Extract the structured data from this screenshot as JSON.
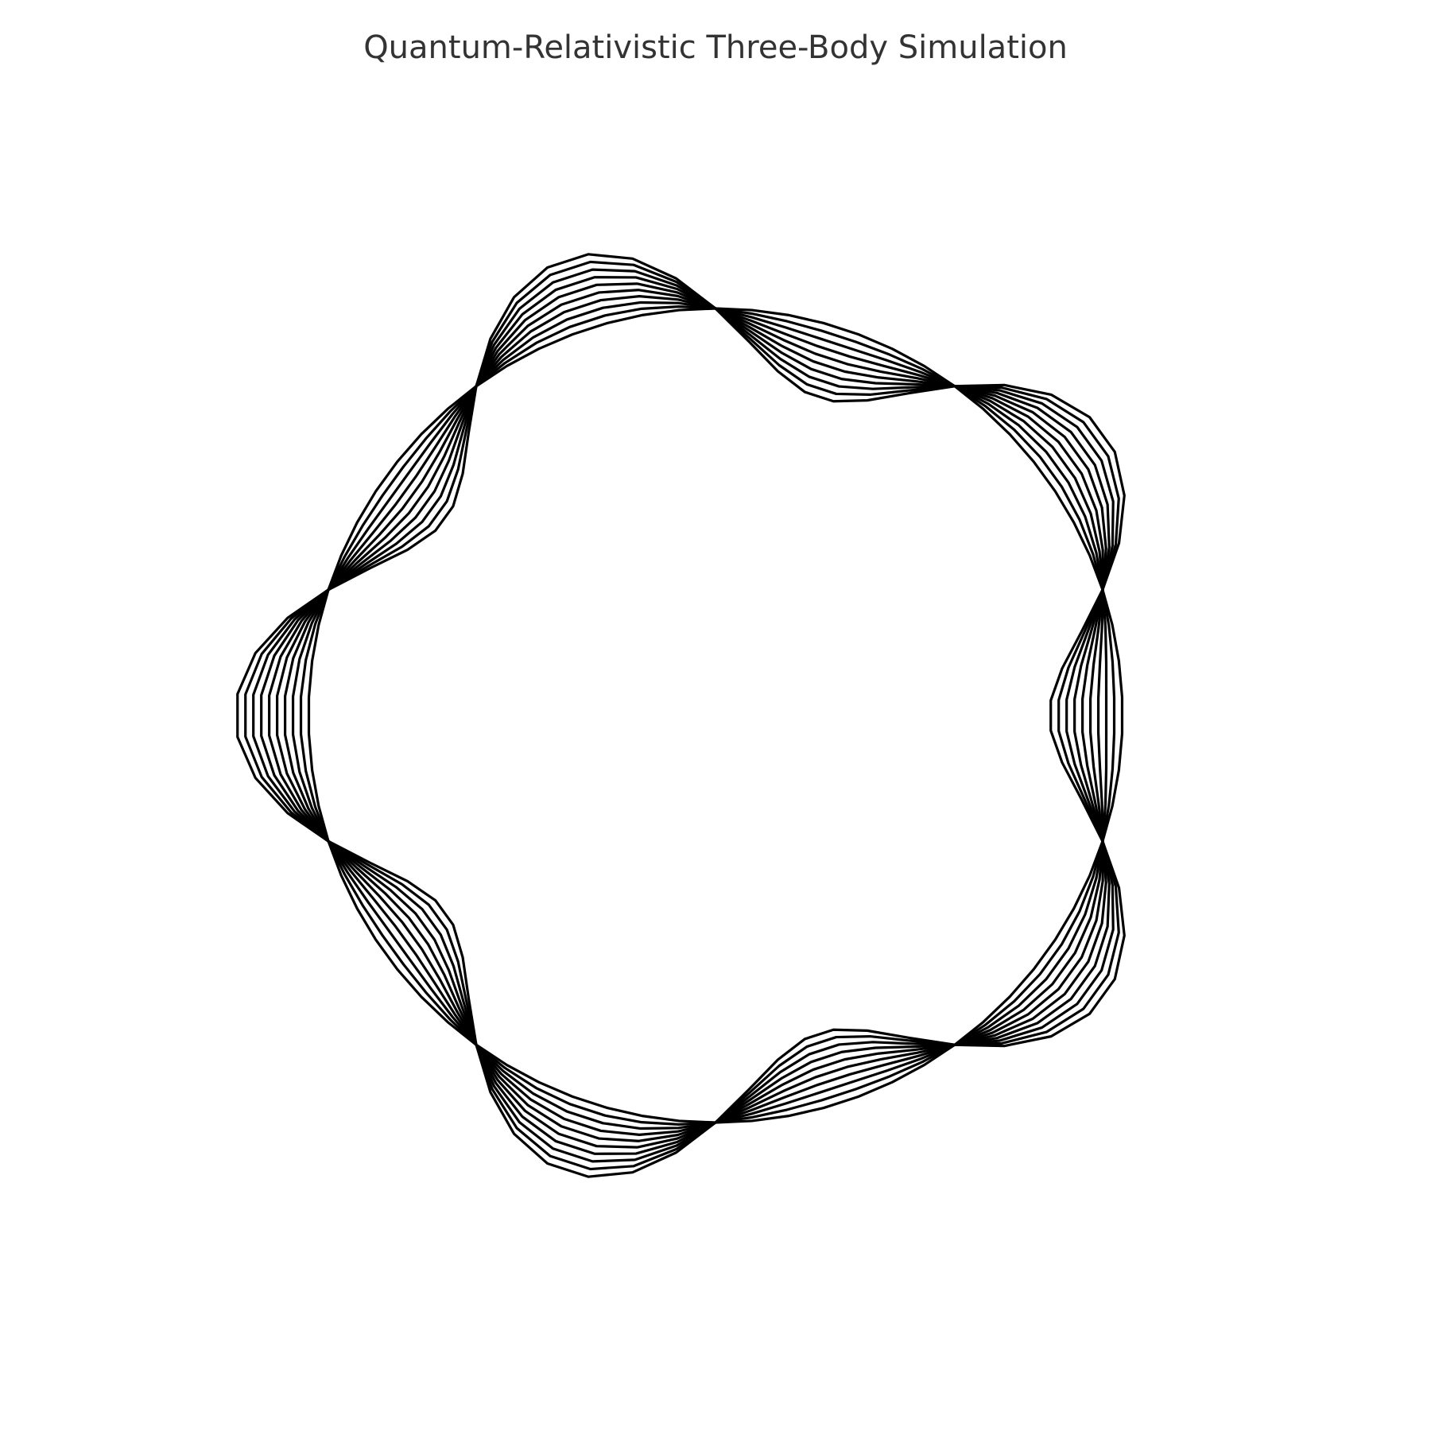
{
  "figure": {
    "title": "Quantum-Relativistic Three-Body Simulation"
  },
  "chart_data": {
    "type": "line",
    "title": "Quantum-Relativistic Three-Body Simulation",
    "xlabel": "",
    "ylabel": "",
    "axes_visible": false,
    "grid": false,
    "legend": "none",
    "line_color": "#000000",
    "aspect": "equal",
    "xlim": [
      -1.3,
      1.3
    ],
    "ylim": [
      -1.3,
      1.3
    ],
    "description_params": {
      "symmetry": 5,
      "nodes": 10,
      "trajectory_count": 10,
      "base_radius": 1.0,
      "perturbation_amplitudes": [
        0.0,
        0.02,
        0.04,
        0.06,
        0.08,
        0.1,
        0.12,
        0.14,
        0.16,
        0.18
      ],
      "points_per_trajectory": 71
    },
    "series": [
      {
        "amplitude": 0.0
      },
      {
        "amplitude": 0.02
      },
      {
        "amplitude": 0.04
      },
      {
        "amplitude": 0.06
      },
      {
        "amplitude": 0.08
      },
      {
        "amplitude": 0.1
      },
      {
        "amplitude": 0.12
      },
      {
        "amplitude": 0.14
      },
      {
        "amplitude": 0.16
      },
      {
        "amplitude": 0.18
      }
    ]
  }
}
